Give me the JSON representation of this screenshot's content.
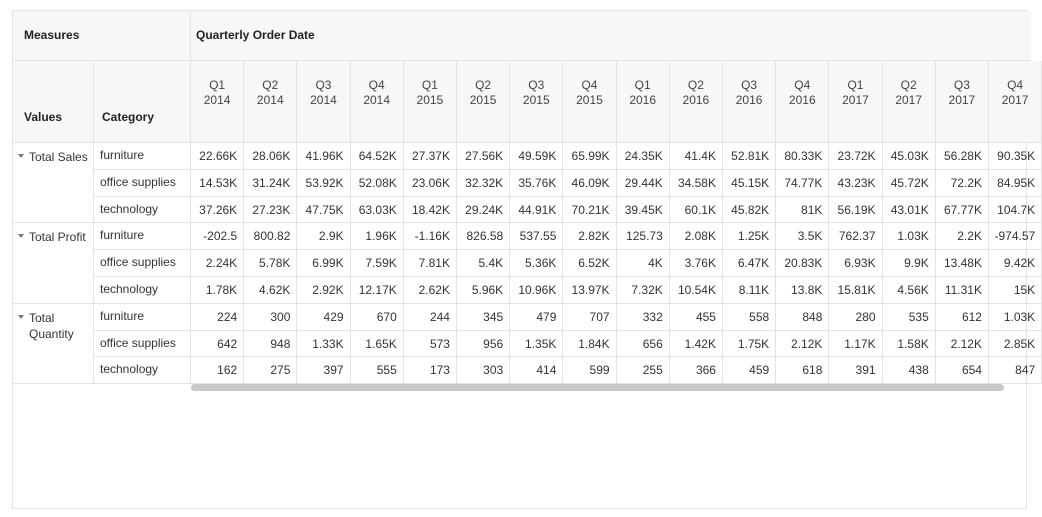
{
  "header": {
    "measures": "Measures",
    "column_group": "Quarterly Order Date",
    "values": "Values",
    "category": "Category"
  },
  "columns": [
    {
      "quarter": "Q1",
      "year": "2014"
    },
    {
      "quarter": "Q2",
      "year": "2014"
    },
    {
      "quarter": "Q3",
      "year": "2014"
    },
    {
      "quarter": "Q4",
      "year": "2014"
    },
    {
      "quarter": "Q1",
      "year": "2015"
    },
    {
      "quarter": "Q2",
      "year": "2015"
    },
    {
      "quarter": "Q3",
      "year": "2015"
    },
    {
      "quarter": "Q4",
      "year": "2015"
    },
    {
      "quarter": "Q1",
      "year": "2016"
    },
    {
      "quarter": "Q2",
      "year": "2016"
    },
    {
      "quarter": "Q3",
      "year": "2016"
    },
    {
      "quarter": "Q4",
      "year": "2016"
    },
    {
      "quarter": "Q1",
      "year": "2017"
    },
    {
      "quarter": "Q2",
      "year": "2017"
    },
    {
      "quarter": "Q3",
      "year": "2017"
    },
    {
      "quarter": "Q4",
      "year": "2017"
    }
  ],
  "groups": [
    {
      "label": "Total Sales",
      "rows": [
        {
          "category": "furniture",
          "cells": [
            "22.66K",
            "28.06K",
            "41.96K",
            "64.52K",
            "27.37K",
            "27.56K",
            "49.59K",
            "65.99K",
            "24.35K",
            "41.4K",
            "52.81K",
            "80.33K",
            "23.72K",
            "45.03K",
            "56.28K",
            "90.35K"
          ]
        },
        {
          "category": "office supplies",
          "cells": [
            "14.53K",
            "31.24K",
            "53.92K",
            "52.08K",
            "23.06K",
            "32.32K",
            "35.76K",
            "46.09K",
            "29.44K",
            "34.58K",
            "45.15K",
            "74.77K",
            "43.23K",
            "45.72K",
            "72.2K",
            "84.95K"
          ]
        },
        {
          "category": "technology",
          "cells": [
            "37.26K",
            "27.23K",
            "47.75K",
            "63.03K",
            "18.42K",
            "29.24K",
            "44.91K",
            "70.21K",
            "39.45K",
            "60.1K",
            "45.82K",
            "81K",
            "56.19K",
            "43.01K",
            "67.77K",
            "104.7K"
          ]
        }
      ]
    },
    {
      "label": "Total Profit",
      "rows": [
        {
          "category": "furniture",
          "cells": [
            "-202.5",
            "800.82",
            "2.9K",
            "1.96K",
            "-1.16K",
            "826.58",
            "537.55",
            "2.82K",
            "125.73",
            "2.08K",
            "1.25K",
            "3.5K",
            "762.37",
            "1.03K",
            "2.2K",
            "-974.57"
          ]
        },
        {
          "category": "office supplies",
          "cells": [
            "2.24K",
            "5.78K",
            "6.99K",
            "7.59K",
            "7.81K",
            "5.4K",
            "5.36K",
            "6.52K",
            "4K",
            "3.76K",
            "6.47K",
            "20.83K",
            "6.93K",
            "9.9K",
            "13.48K",
            "9.42K"
          ]
        },
        {
          "category": "technology",
          "cells": [
            "1.78K",
            "4.62K",
            "2.92K",
            "12.17K",
            "2.62K",
            "5.96K",
            "10.96K",
            "13.97K",
            "7.32K",
            "10.54K",
            "8.11K",
            "13.8K",
            "15.81K",
            "4.56K",
            "11.31K",
            "15K"
          ]
        }
      ]
    },
    {
      "label": "Total Quantity",
      "rows": [
        {
          "category": "furniture",
          "cells": [
            "224",
            "300",
            "429",
            "670",
            "244",
            "345",
            "479",
            "707",
            "332",
            "455",
            "558",
            "848",
            "280",
            "535",
            "612",
            "1.03K"
          ]
        },
        {
          "category": "office supplies",
          "cells": [
            "642",
            "948",
            "1.33K",
            "1.65K",
            "573",
            "956",
            "1.35K",
            "1.84K",
            "656",
            "1.42K",
            "1.75K",
            "2.12K",
            "1.17K",
            "1.58K",
            "2.12K",
            "2.85K"
          ]
        },
        {
          "category": "technology",
          "cells": [
            "162",
            "275",
            "397",
            "555",
            "173",
            "303",
            "414",
            "599",
            "255",
            "366",
            "459",
            "618",
            "391",
            "438",
            "654",
            "847"
          ]
        }
      ]
    }
  ]
}
